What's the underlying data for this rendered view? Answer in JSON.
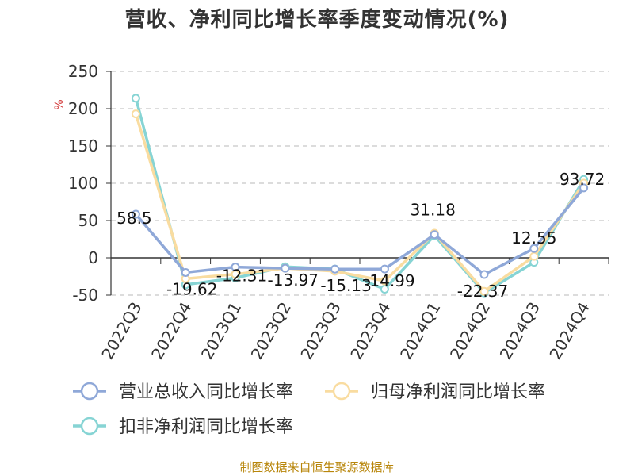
{
  "page": {
    "title": "营收、净利同比增长率季度变动情况(%)",
    "source": "制图数据来自恒生聚源数据库"
  },
  "chart_data": {
    "type": "line",
    "title": "营收、净利同比增长率季度变动情况(%)",
    "ylabel": "%",
    "xlabel": "",
    "ylim": [
      -50,
      250
    ],
    "yticks": [
      -50,
      0,
      50,
      100,
      150,
      200,
      250
    ],
    "grid": true,
    "legend_position": "bottom",
    "categories": [
      "2022Q3",
      "2022Q4",
      "2023Q1",
      "2023Q2",
      "2023Q3",
      "2023Q4",
      "2024Q1",
      "2024Q2",
      "2024Q3",
      "2024Q4"
    ],
    "series": [
      {
        "name": "营业总收入同比增长率",
        "color": "#8fa8d8",
        "values": [
          58.5,
          -19.62,
          -12.31,
          -13.97,
          -15.13,
          -14.99,
          31.18,
          -22.37,
          12.55,
          93.72
        ],
        "labels": [
          "58.5",
          "-19.62",
          "-12.31",
          "-13.97",
          "-15.13",
          "-14.99",
          "31.18",
          "-22.37",
          "12.55",
          "93.72"
        ]
      },
      {
        "name": "归母净利润同比增长率",
        "color": "#f9dca0",
        "values": [
          193,
          -28,
          -22,
          -14,
          -18,
          -31,
          33,
          -45,
          2,
          100
        ]
      },
      {
        "name": "扣非净利润同比增长率",
        "color": "#86d4d4",
        "values": [
          214,
          -36,
          -27,
          -12,
          -15,
          -42,
          30,
          -47,
          -6,
          105
        ]
      }
    ]
  }
}
